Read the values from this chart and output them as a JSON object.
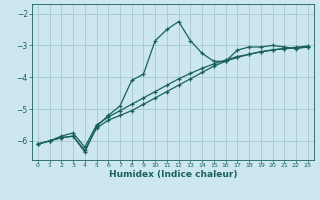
{
  "xlabel": "Humidex (Indice chaleur)",
  "bg_color": "#cce8ee",
  "grid_color": "#aaccd4",
  "line_color": "#1a6060",
  "xlim": [
    -0.5,
    23.5
  ],
  "ylim": [
    -6.6,
    -1.7
  ],
  "yticks": [
    -6,
    -5,
    -4,
    -3,
    -2
  ],
  "xticks": [
    0,
    1,
    2,
    3,
    4,
    5,
    6,
    7,
    8,
    9,
    10,
    11,
    12,
    13,
    14,
    15,
    16,
    17,
    18,
    19,
    20,
    21,
    22,
    23
  ],
  "series1": [
    [
      0,
      -6.1
    ],
    [
      1,
      -6.0
    ],
    [
      2,
      -5.9
    ],
    [
      3,
      -5.85
    ],
    [
      4,
      -6.35
    ],
    [
      5,
      -5.55
    ],
    [
      6,
      -5.2
    ],
    [
      7,
      -4.9
    ],
    [
      8,
      -4.1
    ],
    [
      9,
      -3.9
    ],
    [
      10,
      -2.85
    ],
    [
      11,
      -2.5
    ],
    [
      12,
      -2.25
    ],
    [
      13,
      -2.85
    ],
    [
      14,
      -3.25
    ],
    [
      15,
      -3.5
    ],
    [
      16,
      -3.5
    ],
    [
      17,
      -3.15
    ],
    [
      18,
      -3.05
    ],
    [
      19,
      -3.05
    ],
    [
      20,
      -3.0
    ],
    [
      21,
      -3.05
    ],
    [
      22,
      -3.1
    ],
    [
      23,
      -3.05
    ]
  ],
  "series2": [
    [
      0,
      -6.1
    ],
    [
      1,
      -6.0
    ],
    [
      2,
      -5.9
    ],
    [
      3,
      -5.85
    ],
    [
      4,
      -6.3
    ],
    [
      5,
      -5.6
    ],
    [
      6,
      -5.35
    ],
    [
      7,
      -5.2
    ],
    [
      8,
      -5.05
    ],
    [
      9,
      -4.85
    ],
    [
      10,
      -4.65
    ],
    [
      11,
      -4.45
    ],
    [
      12,
      -4.25
    ],
    [
      13,
      -4.05
    ],
    [
      14,
      -3.85
    ],
    [
      15,
      -3.65
    ],
    [
      16,
      -3.5
    ],
    [
      17,
      -3.38
    ],
    [
      18,
      -3.28
    ],
    [
      19,
      -3.2
    ],
    [
      20,
      -3.15
    ],
    [
      21,
      -3.1
    ],
    [
      22,
      -3.08
    ],
    [
      23,
      -3.05
    ]
  ],
  "series3": [
    [
      0,
      -6.1
    ],
    [
      1,
      -6.0
    ],
    [
      2,
      -5.85
    ],
    [
      3,
      -5.75
    ],
    [
      4,
      -6.2
    ],
    [
      5,
      -5.5
    ],
    [
      6,
      -5.25
    ],
    [
      7,
      -5.05
    ],
    [
      8,
      -4.85
    ],
    [
      9,
      -4.65
    ],
    [
      10,
      -4.45
    ],
    [
      11,
      -4.25
    ],
    [
      12,
      -4.05
    ],
    [
      13,
      -3.88
    ],
    [
      14,
      -3.72
    ],
    [
      15,
      -3.58
    ],
    [
      16,
      -3.46
    ],
    [
      17,
      -3.35
    ],
    [
      18,
      -3.28
    ],
    [
      19,
      -3.2
    ],
    [
      20,
      -3.14
    ],
    [
      21,
      -3.1
    ],
    [
      22,
      -3.06
    ],
    [
      23,
      -3.02
    ]
  ]
}
